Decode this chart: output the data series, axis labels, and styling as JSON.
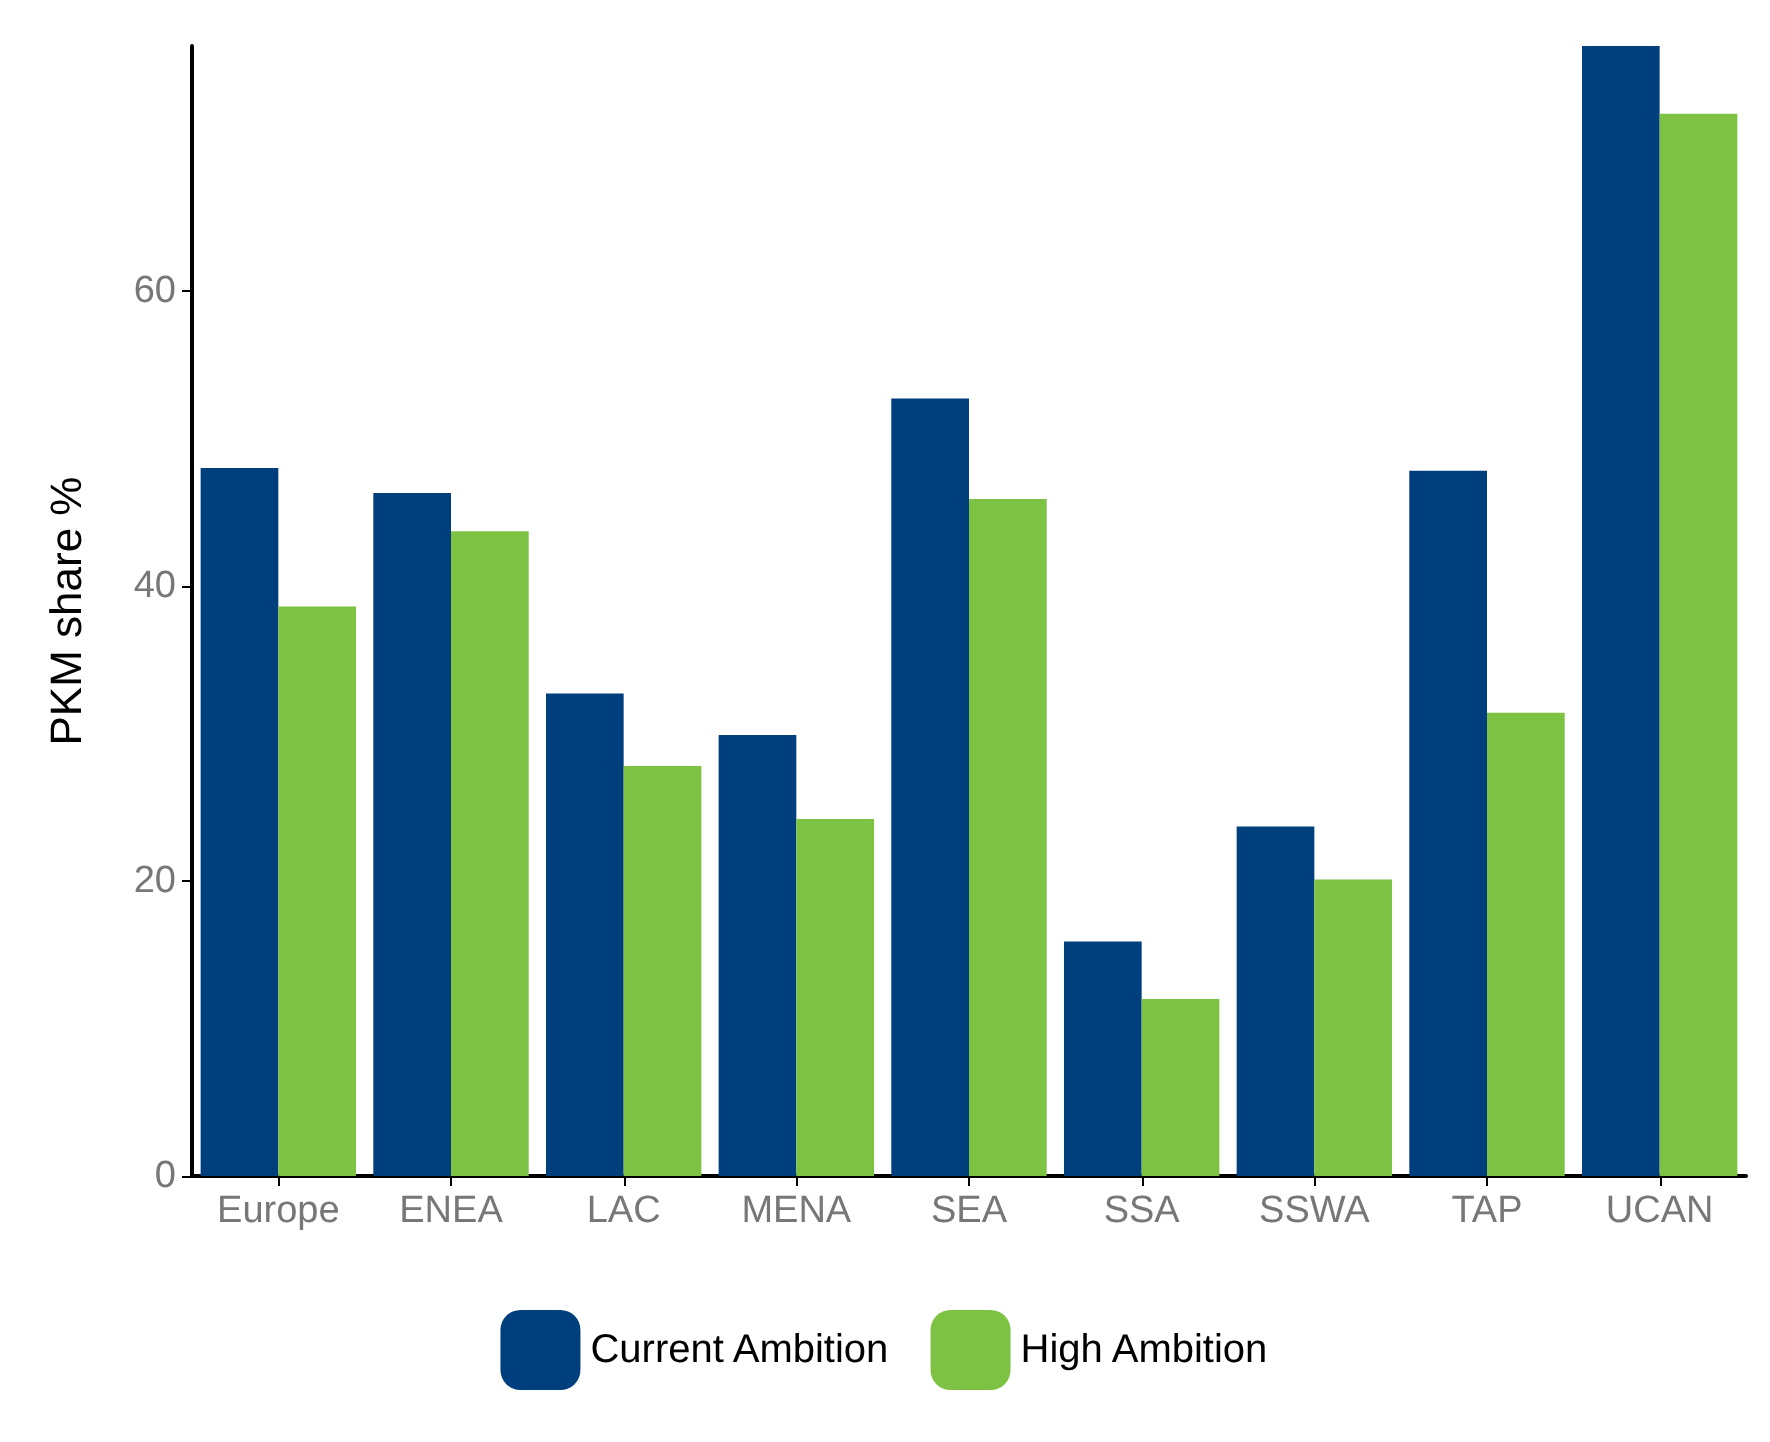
{
  "chart_data": {
    "type": "bar",
    "ylabel": "PKM share %",
    "categories": [
      "Europe",
      "ENEA",
      "LAC",
      "MENA",
      "SEA",
      "SSA",
      "SSWA",
      "TAP",
      "UCAN"
    ],
    "series": [
      {
        "name": "Current Ambition",
        "color": "#003f7d",
        "values": [
          48.0,
          46.3,
          32.7,
          29.9,
          52.7,
          15.9,
          23.7,
          47.8,
          76.6
        ]
      },
      {
        "name": "High Ambition",
        "color": "#7dc243",
        "values": [
          38.6,
          43.7,
          27.8,
          24.2,
          45.9,
          12.0,
          20.1,
          31.4,
          72.0
        ]
      }
    ],
    "ylim": [
      0,
      76.6
    ],
    "yticks": [
      0,
      20,
      40,
      60
    ],
    "grid": false,
    "legend": "bottom"
  }
}
